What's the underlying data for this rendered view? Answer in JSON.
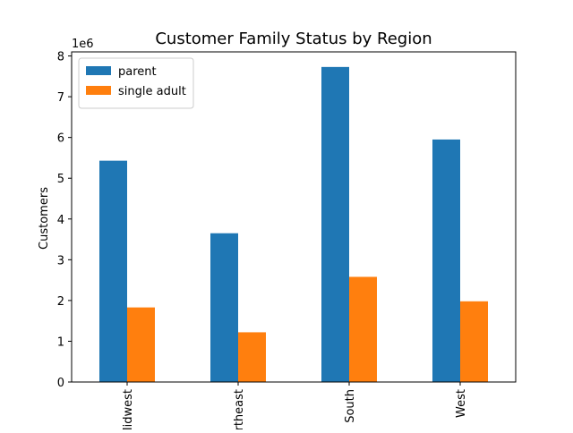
{
  "chart_data": {
    "type": "bar",
    "title": "Customer Family Status by Region",
    "xlabel": "",
    "ylabel": "Customers",
    "offset_text": "1e6",
    "categories": [
      "Midwest",
      "Northeast",
      "South",
      "West"
    ],
    "series": [
      {
        "name": "parent",
        "color": "#1f77b4",
        "values": [
          5430000,
          3650000,
          7730000,
          5950000
        ]
      },
      {
        "name": "single adult",
        "color": "#ff7f0e",
        "values": [
          1830000,
          1220000,
          2580000,
          1980000
        ]
      }
    ],
    "ylim": [
      0,
      8100000
    ],
    "yticks": [
      0,
      1000000,
      2000000,
      3000000,
      4000000,
      5000000,
      6000000,
      7000000,
      8000000
    ],
    "ytick_labels": [
      "0",
      "1",
      "2",
      "3",
      "4",
      "5",
      "6",
      "7",
      "8"
    ],
    "x_tick_rotation": "vertical",
    "grid": false,
    "legend_position": "top-left"
  }
}
